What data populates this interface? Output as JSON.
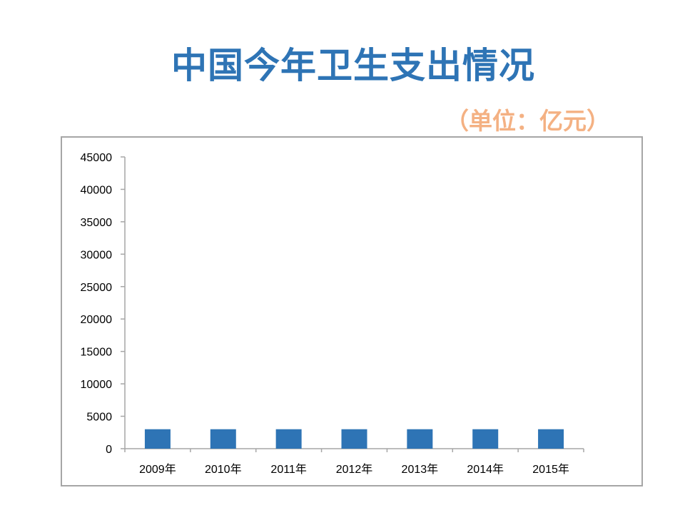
{
  "slide": {
    "title": "中国今年卫生支出情况",
    "unit_label": "（单位：亿元）"
  },
  "colors": {
    "title": "#2e74b5",
    "unit": "#f4b183",
    "bar": "#2e74b5",
    "axis": "#a6a6a6"
  },
  "chart_data": {
    "type": "bar",
    "categories": [
      "2009年",
      "2010年",
      "2011年",
      "2012年",
      "2013年",
      "2014年",
      "2015年"
    ],
    "values": [
      3000,
      3000,
      3000,
      3000,
      3000,
      3000,
      3000
    ],
    "yticks": [
      "0",
      "5000",
      "10000",
      "15000",
      "20000",
      "25000",
      "30000",
      "35000",
      "40000",
      "45000"
    ],
    "ylim": [
      0,
      45000
    ],
    "grid": false,
    "legend": "none"
  }
}
